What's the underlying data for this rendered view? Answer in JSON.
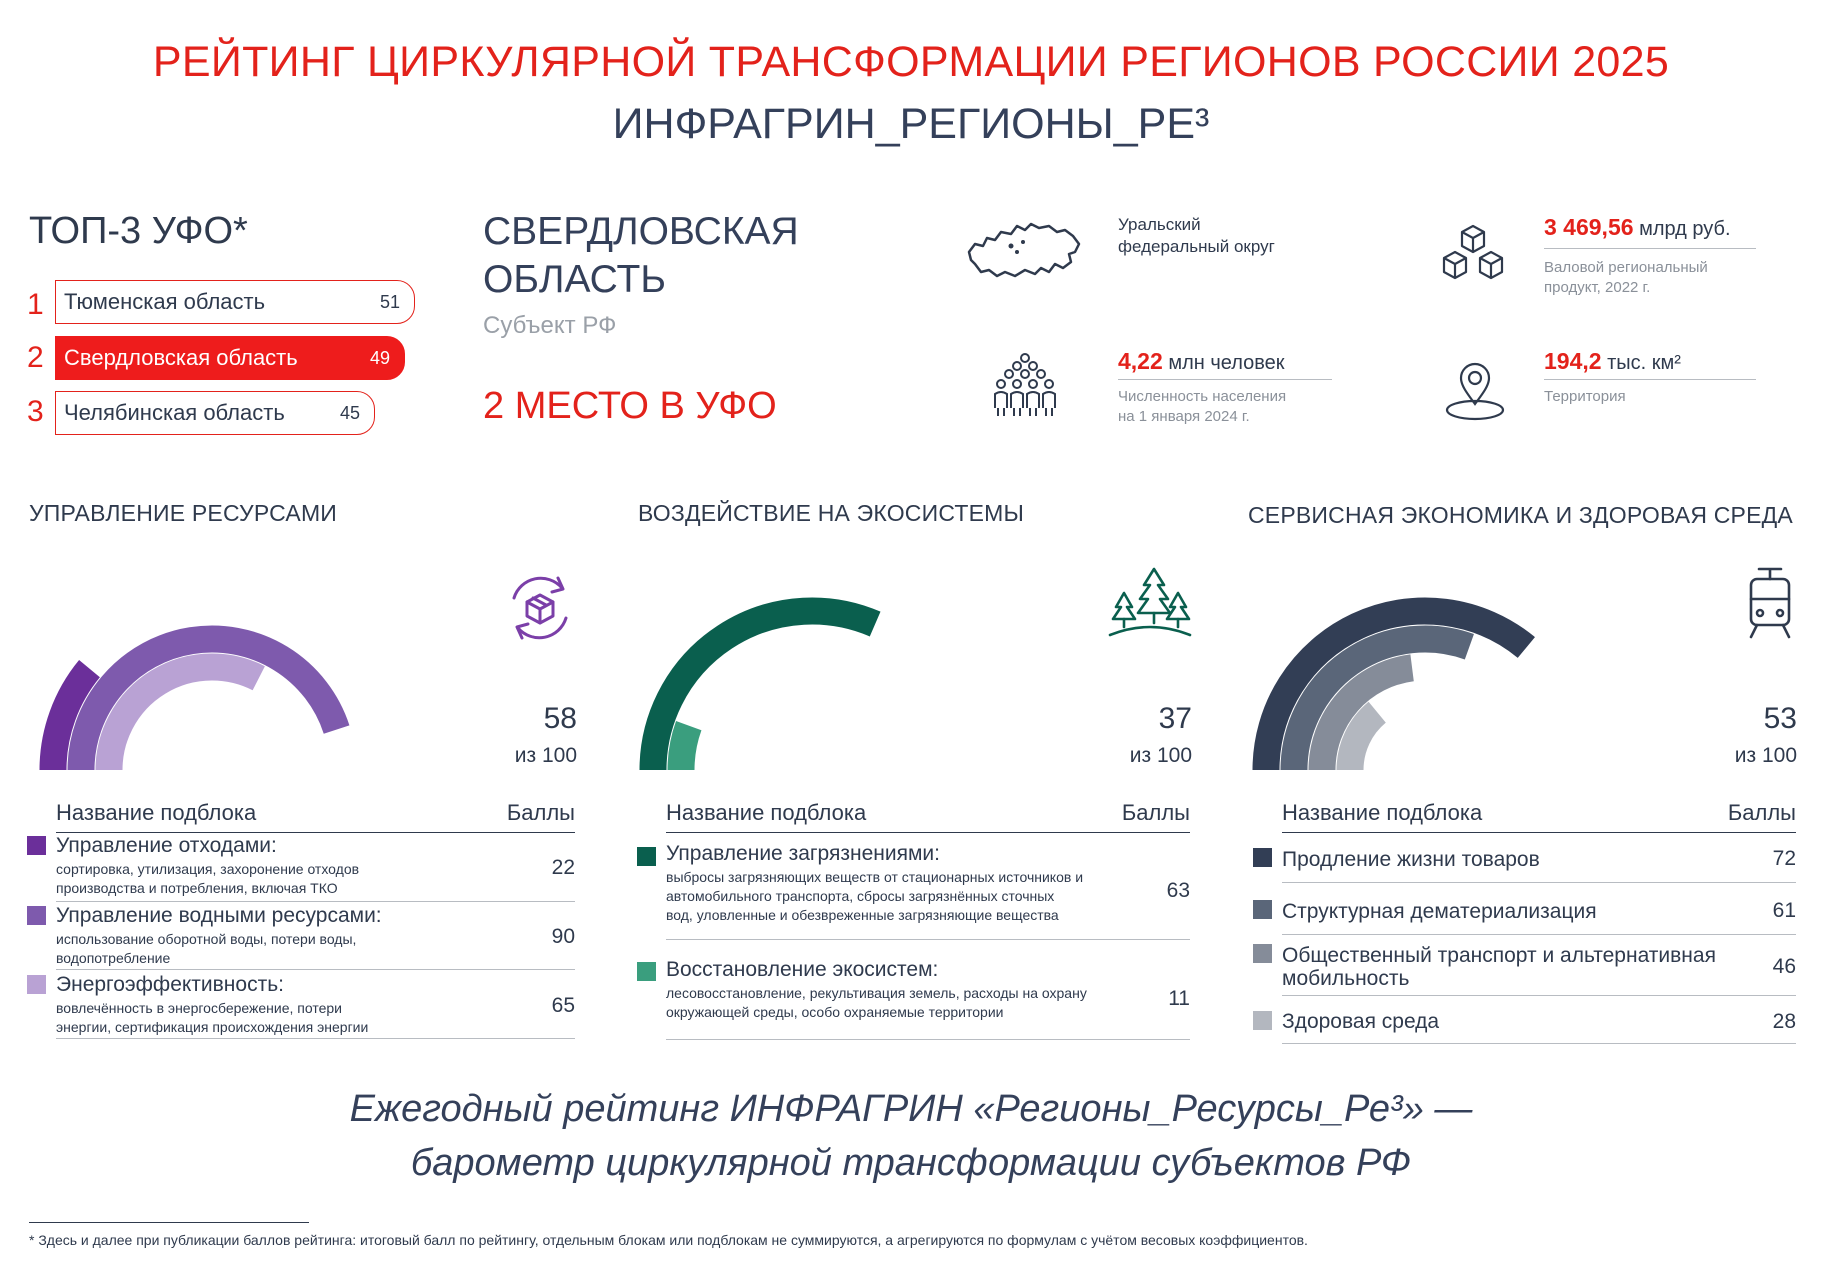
{
  "header": {
    "title": "РЕЙТИНГ ЦИРКУЛЯРНОЙ ТРАНСФОРМАЦИИ РЕГИОНОВ РОССИИ 2025",
    "subtitle": "ИНФРАГРИН_РЕГИОНЫ_РЕ³"
  },
  "top3": {
    "heading": "ТОП-3 УФО*",
    "items": [
      {
        "rank": "1",
        "name": "Тюменская область",
        "score": "51"
      },
      {
        "rank": "2",
        "name": "Свердловская область",
        "score": "49"
      },
      {
        "rank": "3",
        "name": "Челябинская область",
        "score": "45"
      }
    ]
  },
  "region": {
    "name_line1": "СВЕРДЛОВСКАЯ",
    "name_line2": "ОБЛАСТЬ",
    "type": "Субъект РФ",
    "place": "2 МЕСТО В УФО"
  },
  "stats": {
    "district_line1": "Уральский",
    "district_line2": "федеральный округ",
    "grp_value": "3 469,56",
    "grp_unit": " млрд руб.",
    "grp_note_line1": "Валовой региональный",
    "grp_note_line2": "продукт, 2022 г.",
    "population_value": "4,22",
    "population_unit": " млн человек",
    "population_note_line1": "Численность населения",
    "population_note_line2": "на 1 января 2024 г.",
    "territory_value": "194,2",
    "territory_unit": " тыс. км²",
    "territory_note": "Территория"
  },
  "sections": [
    {
      "title": "УПРАВЛЕНИЕ РЕСУРСАМИ",
      "score": "58",
      "of": "из 100",
      "col_name": "Название подблока",
      "col_score": "Баллы",
      "colors": [
        "#6b2f9a",
        "#7e5aad",
        "#b9a2d4"
      ],
      "rows": [
        {
          "title": "Управление отходами:",
          "desc1": "сортировка, утилизация, захоронение отходов",
          "desc2": "производства и потребления, включая ТКО",
          "value": "22",
          "level": 22
        },
        {
          "title": "Управление водными ресурсами:",
          "desc1": "использование оборотной воды, потери воды,",
          "desc2": "водопотребление",
          "value": "90",
          "level": 90
        },
        {
          "title": "Энергоэффективность:",
          "desc1": "вовлечённость в энергосбережение, потери",
          "desc2": "энергии, сертификация происхождения энергии",
          "value": "65",
          "level": 65
        }
      ]
    },
    {
      "title": "ВОЗДЕЙСТВИЕ НА ЭКОСИСТЕМЫ",
      "score": "37",
      "of": "из 100",
      "col_name": "Название подблока",
      "col_score": "Баллы",
      "colors": [
        "#0a5f4e",
        "#3a9e7e"
      ],
      "rows": [
        {
          "title": "Управление загрязнениями:",
          "desc1": "выбросы загрязняющих веществ от стационарных источников и",
          "desc2": "автомобильного транспорта, сбросы загрязнённых сточных",
          "desc3": "вод, уловленные и обезвреженные загрязняющие вещества",
          "value": "63",
          "level": 63
        },
        {
          "title": "Восстановление экосистем:",
          "desc1": "лесовосстановление, рекультивация земель, расходы на охрану",
          "desc2": "окружающей среды, особо охраняемые территории",
          "value": "11",
          "level": 11
        }
      ]
    },
    {
      "title": "СЕРВИСНАЯ ЭКОНОМИКА И ЗДОРОВАЯ СРЕДА",
      "score": "53",
      "of": "из 100",
      "col_name": "Название подблока",
      "col_score": "Баллы",
      "colors": [
        "#323e55",
        "#5a6679",
        "#858c99",
        "#b3b7bf"
      ],
      "rows": [
        {
          "title": "Продление жизни товаров",
          "value": "72",
          "level": 72
        },
        {
          "title": "Структурная дематериализация",
          "value": "61",
          "level": 61
        },
        {
          "title": "Общественный транспорт и альтернативная",
          "title2": "мобильность",
          "value": "46",
          "level": 46
        },
        {
          "title": "Здоровая среда",
          "value": "28",
          "level": 28
        }
      ]
    }
  ],
  "footer": {
    "line1": "Ежегодный рейтинг ИНФРАГРИН «Регионы_Ресурсы_Ре³» —",
    "line2": "барометр циркулярной трансформации субъектов РФ",
    "footnote": "* Здесь и далее при публикации баллов рейтинга: итоговый балл по рейтингу, отдельным блокам или подблокам не суммируются, а агрегируются по формулам с учётом весовых коэффициентов."
  }
}
